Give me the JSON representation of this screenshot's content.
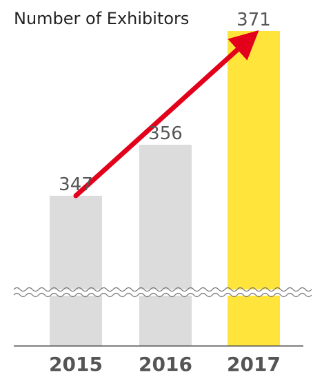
{
  "chart_data": {
    "type": "bar",
    "title": "Number of Exhibitors",
    "categories": [
      "2015",
      "2016",
      "2017"
    ],
    "values": [
      347,
      356,
      371
    ],
    "axis_break": true,
    "highlight_index": 2,
    "trend_arrow": true,
    "colors": {
      "default_bar": "#dcdcdc",
      "highlight_bar": "#ffe53b",
      "highlight_text": "#f0a020",
      "label_text": "#555555",
      "arrow": "#e3001b",
      "baseline": "#555555",
      "break_line": "#777777"
    }
  }
}
